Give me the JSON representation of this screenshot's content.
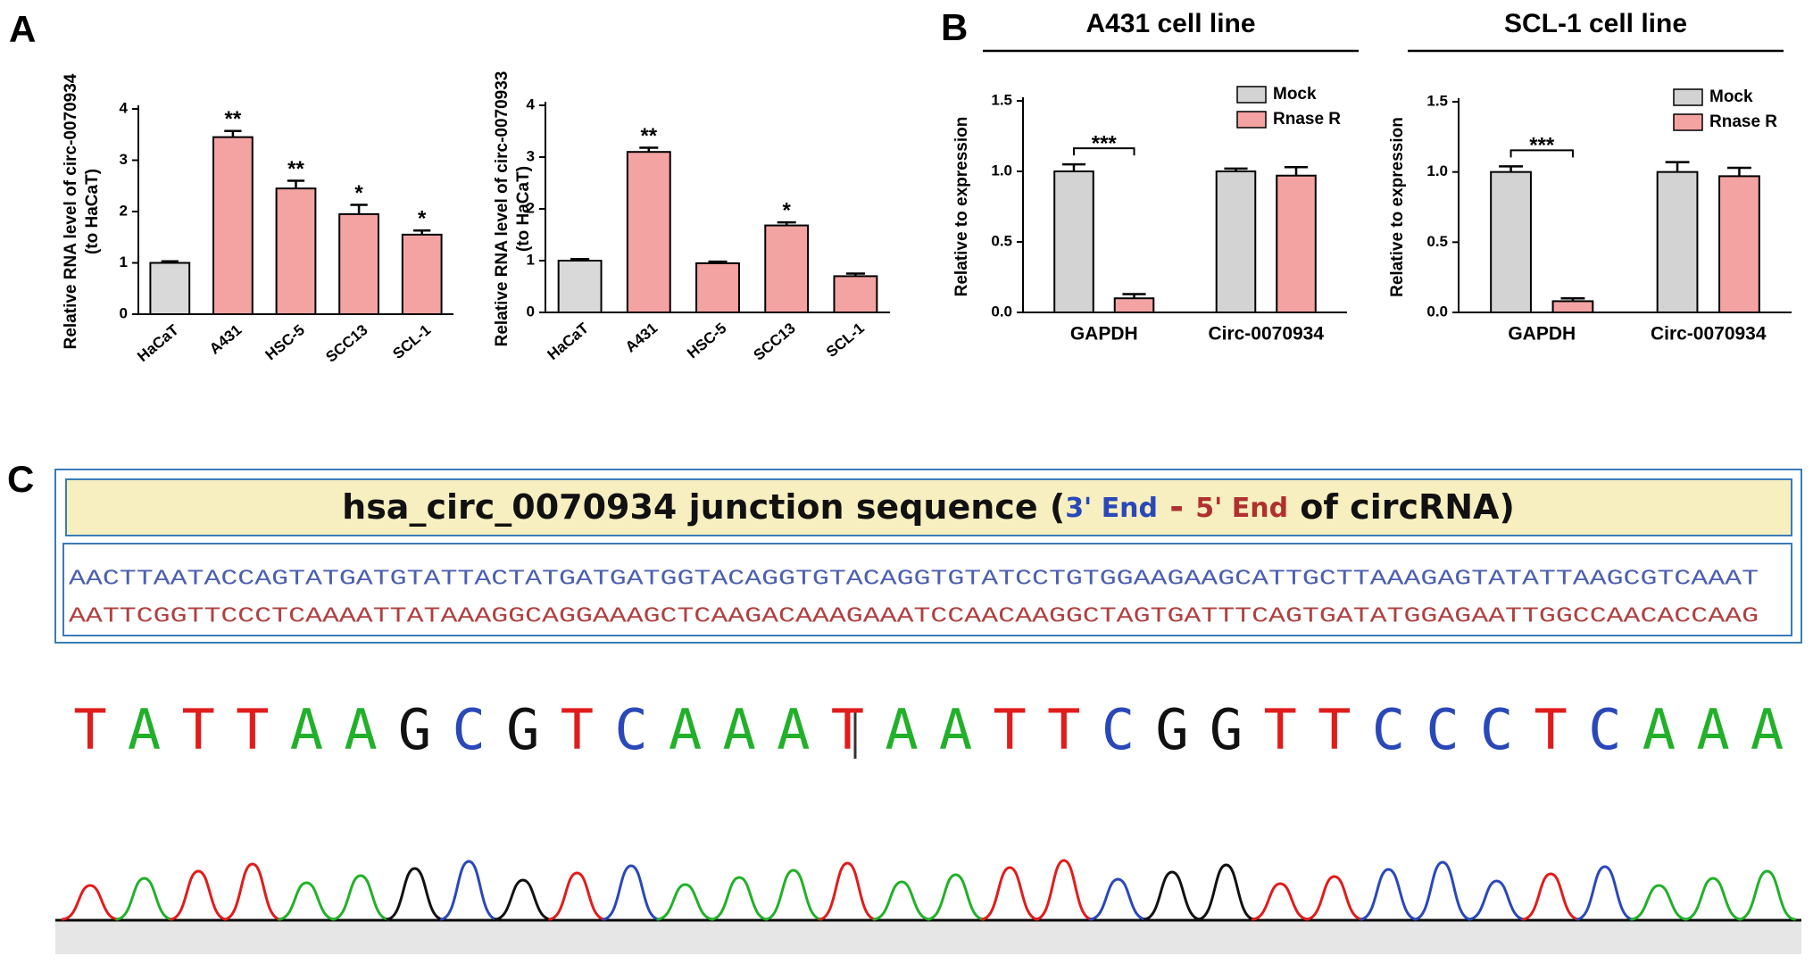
{
  "panel_labels": [
    "A",
    "B",
    "C"
  ],
  "chart_data": [
    {
      "type": "bar",
      "y_label": [
        "Relative RNA level of circ-0070934",
        "(to HaCaT)"
      ],
      "categories": [
        "HaCaT",
        "A431",
        "HSC-5",
        "SCC13",
        "SCL-1"
      ],
      "values": [
        1.0,
        3.45,
        2.45,
        1.95,
        1.55
      ],
      "errors": [
        0.03,
        0.12,
        0.15,
        0.18,
        0.08
      ],
      "annotations": [
        null,
        "**",
        "**",
        "*",
        "*"
      ],
      "colors": [
        "#d9d9d9",
        "#f4a3a3",
        "#f4a3a3",
        "#f4a3a3",
        "#f4a3a3"
      ],
      "ylim": [
        0,
        4
      ],
      "yticks": [
        0,
        1,
        2,
        3,
        4
      ]
    },
    {
      "type": "bar",
      "y_label": [
        "Relative RNA level of circ-0070933",
        "(to HaCaT)"
      ],
      "categories": [
        "HaCaT",
        "A431",
        "HSC-5",
        "SCC13",
        "SCL-1"
      ],
      "values": [
        1.0,
        3.1,
        0.95,
        1.68,
        0.7
      ],
      "errors": [
        0.03,
        0.08,
        0.03,
        0.06,
        0.05
      ],
      "annotations": [
        null,
        "**",
        null,
        "*",
        null
      ],
      "colors": [
        "#d9d9d9",
        "#f4a3a3",
        "#f4a3a3",
        "#f4a3a3",
        "#f4a3a3"
      ],
      "ylim": [
        0,
        4
      ],
      "yticks": [
        0,
        1,
        2,
        3,
        4
      ]
    },
    {
      "type": "bar",
      "title": "A431 cell line",
      "y_label": [
        "Relative to expression"
      ],
      "categories": [
        "GAPDH",
        "Circ-0070934"
      ],
      "series": [
        {
          "name": "Mock",
          "color": "#d3d3d3",
          "values": [
            1.0,
            1.0
          ],
          "errors": [
            0.05,
            0.02
          ]
        },
        {
          "name": "Rnase R",
          "color": "#f4a3a3",
          "values": [
            0.1,
            0.97
          ],
          "errors": [
            0.03,
            0.06
          ]
        }
      ],
      "annotations": [
        "***",
        null
      ],
      "ylim": [
        0,
        1.5
      ],
      "yticks": [
        {
          "value": 0,
          "label": "0.0"
        },
        0.5,
        {
          "value": 1,
          "label": "1.0"
        },
        1.5
      ]
    },
    {
      "type": "bar",
      "title": "SCL-1 cell line",
      "y_label": [
        "Relative to expression"
      ],
      "categories": [
        "GAPDH",
        "Circ-0070934"
      ],
      "series": [
        {
          "name": "Mock",
          "color": "#d3d3d3",
          "values": [
            1.0,
            1.0
          ],
          "errors": [
            0.04,
            0.07
          ]
        },
        {
          "name": "Rnase R",
          "color": "#f4a3a3",
          "values": [
            0.08,
            0.97
          ],
          "errors": [
            0.02,
            0.06
          ]
        }
      ],
      "annotations": [
        "***",
        null
      ],
      "ylim": [
        0,
        1.5
      ],
      "yticks": [
        {
          "value": 0,
          "label": "0.0"
        },
        0.5,
        {
          "value": 1,
          "label": "1.0"
        },
        1.5
      ]
    }
  ],
  "sequence_panel": {
    "header": [
      "hsa_circ_0070934 junction sequence (",
      "3' End",
      " - ",
      "5' End",
      " of circRNA)"
    ],
    "lines": [
      "AACTTAATACCAGTATGATGTATTACTATGATGATGGTACAGGTGTACAGGTGTATCCTGTGGAAGAAGCATTGCTTAAAGAGTATATTAAGCGTCAAAT",
      "AATTCGGTTCCCTCAAAATTATAAAGGCAGGAAAGCTCAAGACAAAGAAATCCAACAAGGCTAGTGATTTCAGTGATATGGAGAATTGGCCAACACCAAG"
    ],
    "line_colors": [
      "#4b5fb0",
      "#b04040"
    ],
    "bases": [
      "T",
      "A",
      "T",
      "T",
      "A",
      "A",
      "G",
      "C",
      "G",
      "T",
      "C",
      "A",
      "A",
      "A",
      "T",
      "A",
      "A",
      "T",
      "T",
      "C",
      "G",
      "G",
      "T",
      "T",
      "C",
      "C",
      "C",
      "T",
      "C",
      "A",
      "A",
      "A"
    ],
    "base_colors": {
      "A": "#22b02a",
      "T": "#e01c1c",
      "G": "#111111",
      "C": "#2a48b8"
    }
  }
}
